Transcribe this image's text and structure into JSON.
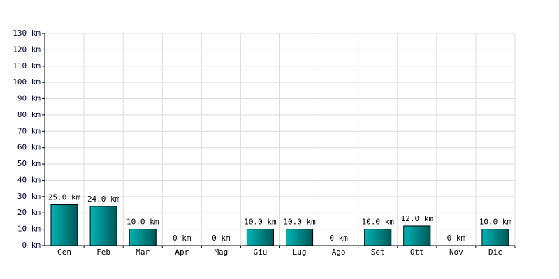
{
  "chart_data": {
    "type": "bar",
    "categories": [
      "Gen",
      "Feb",
      "Mar",
      "Apr",
      "Mag",
      "Giu",
      "Lug",
      "Ago",
      "Set",
      "Ott",
      "Nov",
      "Dic"
    ],
    "values": [
      25,
      24,
      10,
      0,
      0,
      10,
      10,
      0,
      10,
      12,
      0,
      10
    ],
    "value_labels": [
      "25.0 km",
      "24.0 km",
      "10.0 km",
      "0 km",
      "0 km",
      "10.0 km",
      "10.0 km",
      "0 km",
      "10.0 km",
      "12.0 km",
      "0 km",
      "10.0 km"
    ],
    "color": "#00b4b4",
    "ylim": [
      0,
      130
    ],
    "yticks": [
      {
        "value": 0,
        "label": "0 km"
      },
      {
        "value": 10,
        "label": "10 km"
      },
      {
        "value": 20,
        "label": "20 km"
      },
      {
        "value": 30,
        "label": "30 km"
      },
      {
        "value": 40,
        "label": "40 km"
      },
      {
        "value": 50,
        "label": "50 km"
      },
      {
        "value": 60,
        "label": "60 km"
      },
      {
        "value": 70,
        "label": "70 km"
      },
      {
        "value": 80,
        "label": "80 km"
      },
      {
        "value": 90,
        "label": "90 km"
      },
      {
        "value": 100,
        "label": "100 km"
      },
      {
        "value": 110,
        "label": "110 km"
      },
      {
        "value": 120,
        "label": "120 km"
      },
      {
        "value": 130,
        "label": "130 km"
      }
    ],
    "grid": true
  }
}
